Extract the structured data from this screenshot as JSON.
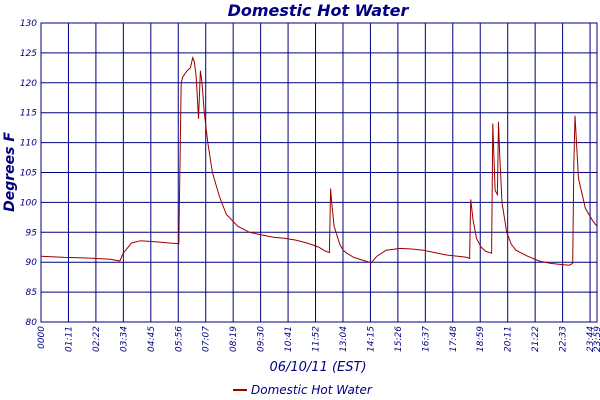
{
  "chart_data": {
    "type": "line",
    "title": "Domestic Hot Water",
    "xlabel": "06/10/11 (EST)",
    "ylabel": "Degrees F",
    "ylim": [
      80,
      130
    ],
    "y_ticks": [
      80,
      85,
      90,
      95,
      100,
      105,
      110,
      115,
      120,
      125,
      130
    ],
    "x_ticks": [
      "0000",
      "01:11",
      "02:22",
      "03:34",
      "04:45",
      "05:56",
      "07:07",
      "08:19",
      "09:30",
      "10:41",
      "11:52",
      "13:04",
      "14:15",
      "15:26",
      "16:37",
      "17:48",
      "18:59",
      "20:11",
      "21:22",
      "22:33",
      "23:44",
      "23:59"
    ],
    "xlim_hours": [
      0,
      24
    ],
    "grid": true,
    "legend_position": "bottom-center",
    "colors": {
      "series": "#990000",
      "grid": "#000080",
      "text": "#000080"
    },
    "series": [
      {
        "name": "Domestic Hot Water",
        "x_hours": [
          0,
          1.0,
          2.0,
          3.0,
          3.4,
          3.55,
          3.9,
          4.3,
          5.0,
          5.6,
          5.95,
          6.05,
          6.12,
          6.3,
          6.45,
          6.55,
          6.62,
          6.7,
          6.8,
          6.88,
          6.95,
          7.05,
          7.2,
          7.4,
          7.7,
          8.0,
          8.5,
          9.0,
          9.5,
          10.0,
          10.5,
          11.0,
          11.5,
          11.8,
          12.0,
          12.3,
          12.45,
          12.5,
          12.55,
          12.65,
          12.9,
          13.04,
          13.2,
          13.5,
          14.0,
          14.25,
          14.5,
          14.9,
          15.5,
          16.0,
          16.5,
          17.0,
          17.5,
          18.0,
          18.4,
          18.5,
          18.55,
          18.65,
          18.8,
          19.0,
          19.2,
          19.45,
          19.5,
          19.6,
          19.7,
          19.75,
          19.8,
          19.9,
          20.1,
          20.3,
          20.5,
          21.0,
          21.5,
          22.0,
          22.5,
          22.8,
          22.95,
          23.0,
          23.05,
          23.2,
          23.5,
          23.8,
          24.0
        ],
        "values": [
          91,
          90.8,
          90.7,
          90.5,
          90.2,
          91.5,
          93.2,
          93.6,
          93.4,
          93.2,
          93.1,
          120,
          121,
          122,
          122.5,
          124.2,
          123.5,
          121,
          114,
          122,
          120,
          115,
          110,
          105,
          101,
          98,
          96,
          95,
          94.6,
          94.2,
          94,
          93.7,
          93.2,
          92.8,
          92.5,
          91.8,
          91.6,
          102.3,
          100,
          96,
          93,
          92,
          91.5,
          90.8,
          90.2,
          89.9,
          91,
          92,
          92.3,
          92.2,
          92,
          91.6,
          91.2,
          91,
          90.8,
          90.6,
          100.5,
          97,
          94,
          92.5,
          91.8,
          91.5,
          113.2,
          102,
          101.3,
          113.5,
          108,
          100,
          95,
          93,
          92,
          91,
          90.2,
          89.8,
          89.6,
          89.5,
          89.8,
          106,
          114.5,
          104,
          99,
          97,
          96
        ]
      }
    ]
  }
}
